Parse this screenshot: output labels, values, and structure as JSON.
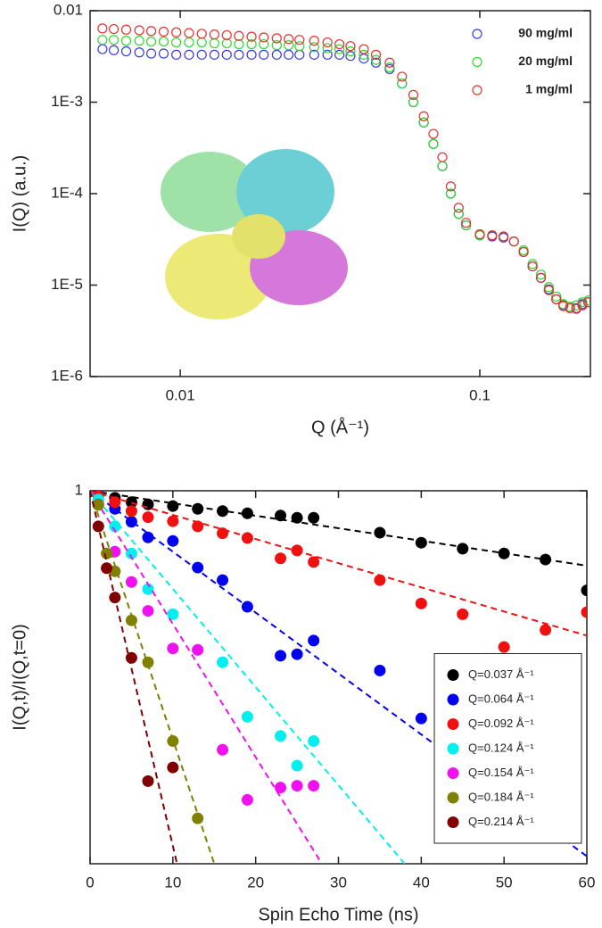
{
  "chart_data": [
    {
      "type": "scatter",
      "log_x": true,
      "log_y": true,
      "marker": "open",
      "xlabel": "Q (Å⁻¹)",
      "ylabel": "I(Q) (a.u.)",
      "xlim": [
        0.005,
        0.234
      ],
      "ylim": [
        1e-06,
        0.01
      ],
      "xticks": [
        0.01,
        0.1
      ],
      "yticks": [
        {
          "value": 1e-06,
          "label": "1E-6"
        },
        {
          "value": 1e-05,
          "label": "1E-5"
        },
        {
          "value": 0.0001,
          "label": "1E-4"
        },
        {
          "value": 0.001,
          "label": "1E-3"
        },
        0.01
      ],
      "legend": "upper right",
      "x": [
        0.0055,
        0.006,
        0.0066,
        0.0073,
        0.008,
        0.0088,
        0.0097,
        0.0107,
        0.0118,
        0.013,
        0.0143,
        0.0157,
        0.0173,
        0.019,
        0.021,
        0.023,
        0.025,
        0.028,
        0.031,
        0.034,
        0.037,
        0.041,
        0.045,
        0.05,
        0.055,
        0.06,
        0.065,
        0.07,
        0.075,
        0.08,
        0.085,
        0.09,
        0.1,
        0.11,
        0.12,
        0.13,
        0.14,
        0.15,
        0.16,
        0.17,
        0.18,
        0.19,
        0.2,
        0.21,
        0.22,
        0.23
      ],
      "series": [
        {
          "name": "90 mg/ml",
          "color": "#3b3bdc",
          "values": [
            0.0038,
            0.0037,
            0.0036,
            0.0035,
            0.0034,
            0.0034,
            0.0033,
            0.0033,
            0.0033,
            0.0033,
            0.0033,
            0.0033,
            0.0033,
            0.0033,
            0.0033,
            0.0033,
            0.0033,
            0.0033,
            0.0033,
            0.0033,
            0.0032,
            0.003,
            0.0027,
            0.0023,
            0.0016,
            0.001,
            0.0006,
            0.00035,
            0.0002,
            0.0001,
            6e-05,
            4.5e-05,
            3.5e-05,
            3.4e-05,
            3.3e-05,
            3e-05,
            2.3e-05,
            1.6e-05,
            1.2e-05,
            9e-06,
            7e-06,
            6e-06,
            5.6e-06,
            5.6e-06,
            6.2e-06,
            6.5e-06
          ]
        },
        {
          "name": "20 mg/ml",
          "color": "#2ed82e",
          "values": [
            0.0048,
            0.0048,
            0.0047,
            0.0047,
            0.0046,
            0.0046,
            0.0045,
            0.0045,
            0.0045,
            0.0044,
            0.0044,
            0.0043,
            0.0043,
            0.0043,
            0.0042,
            0.0042,
            0.0041,
            0.004,
            0.0039,
            0.0038,
            0.0036,
            0.0033,
            0.0029,
            0.0024,
            0.0016,
            0.001,
            0.0006,
            0.00035,
            0.0002,
            0.0001,
            6e-05,
            4.5e-05,
            3.5e-05,
            3.5e-05,
            3.4e-05,
            3e-05,
            2.4e-05,
            1.7e-05,
            1.3e-05,
            9.5e-06,
            7.5e-06,
            6.2e-06,
            5.8e-06,
            6e-06,
            6.5e-06,
            6.8e-06
          ]
        },
        {
          "name": "1 mg/ml",
          "color": "#e83030",
          "values": [
            0.0064,
            0.0063,
            0.0062,
            0.0061,
            0.006,
            0.0059,
            0.0058,
            0.0057,
            0.0056,
            0.0055,
            0.0054,
            0.0053,
            0.0052,
            0.0051,
            0.005,
            0.0049,
            0.0048,
            0.0047,
            0.0045,
            0.0043,
            0.0041,
            0.0038,
            0.0033,
            0.0027,
            0.0019,
            0.0012,
            0.0007,
            0.00045,
            0.00025,
            0.00012,
            7e-05,
            4.8e-05,
            3.6e-05,
            3.5e-05,
            3.4e-05,
            3e-05,
            2.3e-05,
            1.6e-05,
            1.2e-05,
            8.8e-06,
            7e-06,
            5.9e-06,
            5.6e-06,
            5.5e-06,
            6e-06,
            6.5e-06
          ]
        }
      ]
    },
    {
      "type": "scatter",
      "log_x": false,
      "log_y": true,
      "marker": "filled",
      "xlabel": "Spin Echo Time (ns)",
      "ylabel": "I(Q,t)/I(Q,t=0)",
      "xlim": [
        0,
        60
      ],
      "ylim": [
        0.5,
        1
      ],
      "xticks": [
        0,
        10,
        20,
        30,
        40,
        50,
        60
      ],
      "yticks": [
        1
      ],
      "legend": "lower right",
      "series": [
        {
          "name": "Q=0.037 Å⁻¹",
          "color": "#000000",
          "x": [
            1,
            3,
            5,
            7,
            10,
            13,
            16,
            19,
            23,
            25,
            27,
            35,
            40,
            45,
            50,
            55,
            60
          ],
          "values": [
            0.992,
            0.987,
            0.979,
            0.975,
            0.972,
            0.967,
            0.963,
            0.959,
            0.955,
            0.951,
            0.951,
            0.925,
            0.908,
            0.898,
            0.89,
            0.88,
            0.831
          ],
          "fit": {
            "x": [
              0,
              60
            ],
            "values": [
              1,
              0.87
            ]
          }
        },
        {
          "name": "Q=0.064 Å⁻¹",
          "color": "#0000f0",
          "x": [
            1,
            3,
            5,
            7,
            10,
            13,
            16,
            19,
            23,
            25,
            27,
            35,
            40
          ],
          "values": [
            0.992,
            0.967,
            0.944,
            0.917,
            0.911,
            0.867,
            0.847,
            0.806,
            0.736,
            0.738,
            0.757,
            0.716,
            0.655
          ],
          "fit": {
            "x": [
              0,
              60
            ],
            "values": [
              1,
              0.507
            ]
          }
        },
        {
          "name": "Q=0.092 Å⁻¹",
          "color": "#f01010",
          "x": [
            1,
            3,
            5,
            7,
            10,
            13,
            16,
            19,
            23,
            25,
            27,
            35,
            40,
            45,
            50,
            55,
            60
          ],
          "values": [
            0.99,
            0.979,
            0.963,
            0.952,
            0.945,
            0.936,
            0.924,
            0.916,
            0.882,
            0.895,
            0.876,
            0.847,
            0.811,
            0.795,
            0.748,
            0.772,
            0.798
          ],
          "fit": {
            "x": [
              0,
              60
            ],
            "values": [
              1,
              0.764
            ]
          }
        },
        {
          "name": "Q=0.124 Å⁻¹",
          "color": "#00f0f0",
          "x": [
            1,
            3,
            5,
            7,
            10,
            13,
            16,
            19,
            23,
            25,
            27
          ],
          "values": [
            0.984,
            0.936,
            0.89,
            0.833,
            0.795,
            0.744,
            0.727,
            0.657,
            0.634,
            0.6,
            0.628
          ],
          "fit": {
            "x": [
              0,
              38
            ],
            "values": [
              1,
              0.5
            ]
          }
        },
        {
          "name": "Q=0.154 Å⁻¹",
          "color": "#f010f0",
          "x": [
            1,
            3,
            5,
            7,
            10,
            13,
            16,
            19,
            23,
            25,
            27
          ],
          "values": [
            0.975,
            0.893,
            0.844,
            0.8,
            0.746,
            0.744,
            0.618,
            0.563,
            0.576,
            0.578,
            0.578
          ],
          "fit": {
            "x": [
              0,
              28
            ],
            "values": [
              1,
              0.5
            ]
          }
        },
        {
          "name": "Q=0.184 Å⁻¹",
          "color": "#808000",
          "x": [
            1,
            2,
            3,
            5,
            7,
            10,
            13
          ],
          "values": [
            0.974,
            0.89,
            0.861,
            0.786,
            0.727,
            0.628,
            0.544
          ],
          "fit": {
            "x": [
              0,
              15
            ],
            "values": [
              1,
              0.5
            ]
          }
        },
        {
          "name": "Q=0.214 Å⁻¹",
          "color": "#800000",
          "x": [
            1,
            2,
            3,
            5,
            7,
            10
          ],
          "values": [
            0.936,
            0.866,
            0.82,
            0.733,
            0.583,
            0.598
          ],
          "fit": {
            "x": [
              0,
              10.5
            ],
            "values": [
              1,
              0.5
            ]
          }
        }
      ]
    }
  ]
}
